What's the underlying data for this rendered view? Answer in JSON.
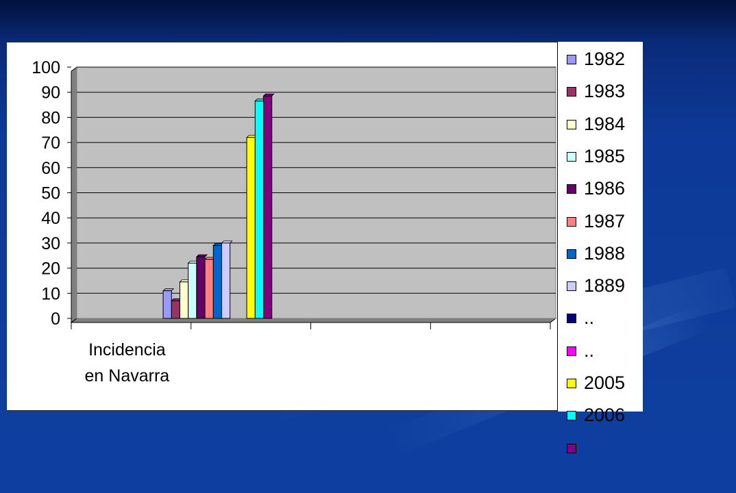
{
  "chart_data": {
    "type": "bar",
    "categories": [
      "Incidencia en Navarra",
      "",
      "",
      ""
    ],
    "category_lines": [
      [
        "Incidencia",
        "en Navarra"
      ],
      [],
      [],
      []
    ],
    "ylim": [
      0,
      100
    ],
    "yticks": [
      0,
      10,
      20,
      30,
      40,
      50,
      60,
      70,
      80,
      90,
      100
    ],
    "grid": true,
    "legend_position": "right",
    "plot_background": "#c0c0c0",
    "series": [
      {
        "name": "1982",
        "color": "#9999ff",
        "values": [
          11,
          null,
          null,
          null
        ]
      },
      {
        "name": "1983",
        "color": "#993366",
        "values": [
          7,
          null,
          null,
          null
        ]
      },
      {
        "name": "1984",
        "color": "#ffffcc",
        "values": [
          14.5,
          null,
          null,
          null
        ]
      },
      {
        "name": "1985",
        "color": "#ccffff",
        "values": [
          22,
          null,
          null,
          null
        ]
      },
      {
        "name": "1986",
        "color": "#660066",
        "values": [
          24.5,
          null,
          null,
          null
        ]
      },
      {
        "name": "1987",
        "color": "#ff8080",
        "values": [
          23.5,
          null,
          null,
          null
        ]
      },
      {
        "name": "1988",
        "color": "#0066cc",
        "values": [
          29,
          null,
          null,
          null
        ]
      },
      {
        "name": "1889",
        "color": "#ccccff",
        "values": [
          30,
          null,
          null,
          null
        ]
      },
      {
        "name": "..",
        "color": "#000080",
        "values": [
          null,
          null,
          null,
          null
        ]
      },
      {
        "name": "..",
        "color": "#ff00ff",
        "values": [
          null,
          null,
          null,
          null
        ]
      },
      {
        "name": "2005",
        "color": "#ffff00",
        "values": [
          72,
          null,
          null,
          null
        ]
      },
      {
        "name": "2006",
        "color": "#00ffff",
        "values": [
          86.5,
          null,
          null,
          null
        ]
      },
      {
        "name": "",
        "color": "#800080",
        "values": [
          88.5,
          null,
          null,
          null
        ]
      }
    ]
  }
}
